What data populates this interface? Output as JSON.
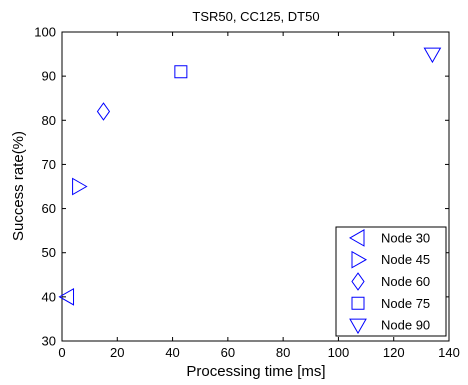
{
  "chart_data": {
    "type": "scatter",
    "title": "TSR50, CC125, DT50",
    "xlabel": "Processing time [ms]",
    "ylabel": "Success rate(%)",
    "xlim": [
      0,
      140
    ],
    "ylim": [
      30,
      100
    ],
    "xticks": [
      0,
      20,
      40,
      60,
      80,
      100,
      120,
      140
    ],
    "yticks": [
      30,
      40,
      50,
      60,
      70,
      80,
      90,
      100
    ],
    "grid": false,
    "legend_position": "bottom-right",
    "marker_color": "#0000ff",
    "series": [
      {
        "name": "Node 30",
        "marker": "triangle-left",
        "x": [
          2
        ],
        "y": [
          40
        ]
      },
      {
        "name": "Node 45",
        "marker": "triangle-right",
        "x": [
          6
        ],
        "y": [
          65
        ]
      },
      {
        "name": "Node 60",
        "marker": "diamond",
        "x": [
          15
        ],
        "y": [
          82
        ]
      },
      {
        "name": "Node 75",
        "marker": "square",
        "x": [
          43
        ],
        "y": [
          91
        ]
      },
      {
        "name": "Node 90",
        "marker": "triangle-down",
        "x": [
          134
        ],
        "y": [
          95
        ]
      }
    ]
  }
}
